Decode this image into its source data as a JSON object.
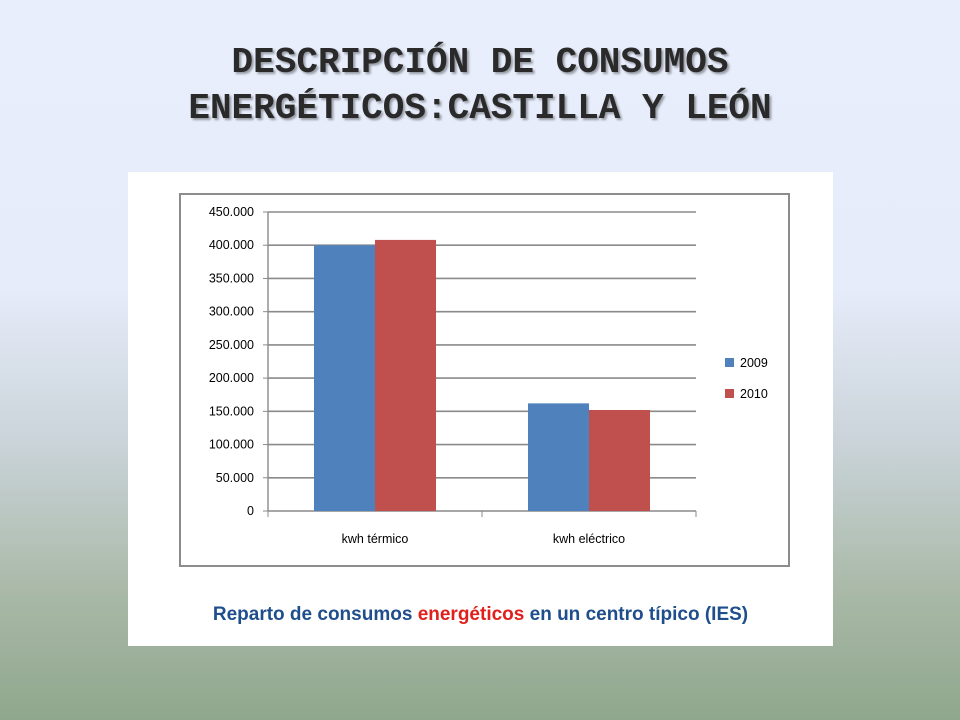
{
  "slide": {
    "title_line1": "DESCRIPCIÓN DE CONSUMOS",
    "title_line2": "ENERGÉTICOS:CASTILLA Y LEÓN"
  },
  "caption": {
    "part1": "Reparto de consumos ",
    "part2": "energéticos",
    "part3": " en un centro típico (IES)",
    "color_main": "#1f4e8c",
    "color_highlight": "#e0201c"
  },
  "chart_data": {
    "type": "bar",
    "title": "",
    "xlabel": "",
    "ylabel": "",
    "categories": [
      "kwh térmico",
      "kwh eléctrico"
    ],
    "series": [
      {
        "name": "2009",
        "values": [
          400000,
          162000
        ],
        "color": "#4f81bd"
      },
      {
        "name": "2010",
        "values": [
          408000,
          152000
        ],
        "color": "#c0504d"
      }
    ],
    "ylim": [
      0,
      450000
    ],
    "yticks": [
      0,
      50000,
      100000,
      150000,
      200000,
      250000,
      300000,
      350000,
      400000,
      450000
    ],
    "ytick_labels": [
      "0",
      "50.000",
      "100.000",
      "150.000",
      "200.000",
      "250.000",
      "300.000",
      "350.000",
      "400.000",
      "450.000"
    ],
    "grid": true,
    "legend_position": "right"
  }
}
